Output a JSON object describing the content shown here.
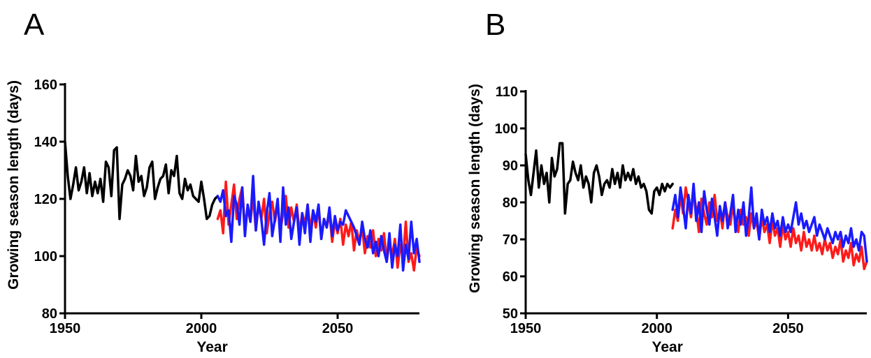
{
  "chart_data": [
    {
      "type": "line",
      "panel_label": "A",
      "xlabel": "Year",
      "ylabel": "Growing season length (days)",
      "xlim": [
        1950,
        2080
      ],
      "ylim": [
        80,
        160
      ],
      "xticks": [
        1950,
        2000,
        2050
      ],
      "yticks": [
        80,
        100,
        120,
        140,
        160
      ],
      "grid": false,
      "series": [
        {
          "color": "#000000",
          "x": [
            1950,
            1951,
            1952,
            1953,
            1954,
            1955,
            1956,
            1957,
            1958,
            1959,
            1960,
            1961,
            1962,
            1963,
            1964,
            1965,
            1966,
            1967,
            1968,
            1969,
            1970,
            1971,
            1972,
            1973,
            1974,
            1975,
            1976,
            1977,
            1978,
            1979,
            1980,
            1981,
            1982,
            1983,
            1984,
            1985,
            1986,
            1987,
            1988,
            1989,
            1990,
            1991,
            1992,
            1993,
            1994,
            1995,
            1996,
            1997,
            1998,
            1999,
            2000,
            2001,
            2002,
            2003,
            2004,
            2005,
            2006
          ],
          "y": [
            140,
            128,
            120,
            125,
            131,
            123,
            126,
            131,
            122,
            129,
            121,
            126,
            122,
            127,
            119,
            133,
            131,
            121,
            137,
            138,
            113,
            125,
            127,
            130,
            128,
            123,
            135,
            126,
            128,
            121,
            124,
            131,
            133,
            120,
            124,
            127,
            128,
            132,
            122,
            130,
            128,
            135,
            122,
            120,
            127,
            123,
            125,
            121,
            120,
            119,
            126,
            120,
            113,
            114,
            118,
            120,
            121
          ]
        },
        {
          "color": "#ff1a1a",
          "x": [
            2006,
            2007,
            2008,
            2009,
            2010,
            2011,
            2012,
            2013,
            2014,
            2015,
            2016,
            2017,
            2018,
            2019,
            2020,
            2021,
            2022,
            2023,
            2024,
            2025,
            2026,
            2027,
            2028,
            2029,
            2030,
            2031,
            2032,
            2033,
            2034,
            2035,
            2036,
            2037,
            2038,
            2039,
            2040,
            2041,
            2042,
            2043,
            2044,
            2045,
            2046,
            2047,
            2048,
            2049,
            2050,
            2051,
            2052,
            2053,
            2054,
            2055,
            2056,
            2057,
            2058,
            2059,
            2060,
            2061,
            2062,
            2063,
            2064,
            2065,
            2066,
            2067,
            2068,
            2069,
            2070,
            2071,
            2072,
            2073,
            2074,
            2075,
            2076,
            2077,
            2078,
            2079,
            2080
          ],
          "y": [
            113,
            116,
            108,
            126,
            111,
            118,
            125,
            113,
            120,
            124,
            110,
            117,
            112,
            121,
            109,
            118,
            113,
            120,
            108,
            115,
            119,
            112,
            118,
            109,
            115,
            121,
            110,
            117,
            112,
            118,
            108,
            115,
            111,
            118,
            109,
            116,
            110,
            117,
            106,
            113,
            110,
            115,
            105,
            112,
            108,
            113,
            104,
            111,
            107,
            112,
            102,
            109,
            105,
            110,
            101,
            107,
            103,
            109,
            100,
            106,
            102,
            108,
            98,
            105,
            100,
            106,
            96,
            104,
            99,
            112,
            98,
            101,
            95,
            103,
            100
          ]
        },
        {
          "color": "#1a1aff",
          "x": [
            2006,
            2007,
            2008,
            2009,
            2010,
            2011,
            2012,
            2013,
            2014,
            2015,
            2016,
            2017,
            2018,
            2019,
            2020,
            2021,
            2022,
            2023,
            2024,
            2025,
            2026,
            2027,
            2028,
            2029,
            2030,
            2031,
            2032,
            2033,
            2034,
            2035,
            2036,
            2037,
            2038,
            2039,
            2040,
            2041,
            2042,
            2043,
            2044,
            2045,
            2046,
            2047,
            2048,
            2049,
            2050,
            2051,
            2052,
            2053,
            2054,
            2055,
            2056,
            2057,
            2058,
            2059,
            2060,
            2061,
            2062,
            2063,
            2064,
            2065,
            2066,
            2067,
            2068,
            2069,
            2070,
            2071,
            2072,
            2073,
            2074,
            2075,
            2076,
            2077,
            2078,
            2079,
            2080
          ],
          "y": [
            121,
            119,
            123,
            114,
            116,
            105,
            121,
            118,
            111,
            124,
            107,
            118,
            112,
            128,
            109,
            119,
            113,
            104,
            115,
            122,
            107,
            113,
            120,
            105,
            124,
            111,
            117,
            106,
            112,
            117,
            104,
            115,
            108,
            118,
            105,
            116,
            112,
            118,
            106,
            113,
            110,
            117,
            107,
            114,
            109,
            112,
            111,
            116,
            114,
            112,
            110,
            107,
            104,
            112,
            106,
            103,
            109,
            101,
            105,
            100,
            107,
            102,
            98,
            108,
            96,
            104,
            100,
            111,
            95,
            104,
            99,
            112,
            101,
            106,
            98
          ]
        }
      ]
    },
    {
      "type": "line",
      "panel_label": "B",
      "xlabel": "Year",
      "ylabel": "Growing season length (days)",
      "xlim": [
        1950,
        2080
      ],
      "ylim": [
        50,
        110
      ],
      "xticks": [
        1950,
        2000,
        2050
      ],
      "yticks": [
        50,
        60,
        70,
        80,
        90,
        100,
        110
      ],
      "grid": false,
      "series": [
        {
          "color": "#000000",
          "x": [
            1950,
            1951,
            1952,
            1953,
            1954,
            1955,
            1956,
            1957,
            1958,
            1959,
            1960,
            1961,
            1962,
            1963,
            1964,
            1965,
            1966,
            1967,
            1968,
            1969,
            1970,
            1971,
            1972,
            1973,
            1974,
            1975,
            1976,
            1977,
            1978,
            1979,
            1980,
            1981,
            1982,
            1983,
            1984,
            1985,
            1986,
            1987,
            1988,
            1989,
            1990,
            1991,
            1992,
            1993,
            1994,
            1995,
            1996,
            1997,
            1998,
            1999,
            2000,
            2001,
            2002,
            2003,
            2004,
            2005,
            2006
          ],
          "y": [
            93,
            86,
            82,
            88,
            94,
            84,
            90,
            85,
            88,
            80,
            92,
            87,
            89,
            96,
            96,
            77,
            85,
            86,
            91,
            88,
            86,
            90,
            84,
            87,
            85,
            80,
            88,
            90,
            87,
            82,
            85,
            86,
            84,
            89,
            85,
            88,
            84,
            90,
            86,
            88,
            86,
            89,
            85,
            87,
            84,
            85,
            83,
            78,
            77,
            83,
            84,
            82,
            85,
            83,
            85,
            84,
            85
          ]
        },
        {
          "color": "#ff1a1a",
          "x": [
            2006,
            2007,
            2008,
            2009,
            2010,
            2011,
            2012,
            2013,
            2014,
            2015,
            2016,
            2017,
            2018,
            2019,
            2020,
            2021,
            2022,
            2023,
            2024,
            2025,
            2026,
            2027,
            2028,
            2029,
            2030,
            2031,
            2032,
            2033,
            2034,
            2035,
            2036,
            2037,
            2038,
            2039,
            2040,
            2041,
            2042,
            2043,
            2044,
            2045,
            2046,
            2047,
            2048,
            2049,
            2050,
            2051,
            2052,
            2053,
            2054,
            2055,
            2056,
            2057,
            2058,
            2059,
            2060,
            2061,
            2062,
            2063,
            2064,
            2065,
            2066,
            2067,
            2068,
            2069,
            2070,
            2071,
            2072,
            2073,
            2074,
            2075,
            2076,
            2077,
            2078,
            2079,
            2080
          ],
          "y": [
            73,
            78,
            75,
            82,
            77,
            84,
            80,
            76,
            83,
            78,
            72,
            81,
            77,
            74,
            80,
            76,
            82,
            75,
            78,
            73,
            80,
            76,
            74,
            79,
            75,
            72,
            78,
            74,
            76,
            71,
            77,
            73,
            75,
            70,
            76,
            72,
            74,
            69,
            75,
            71,
            73,
            68,
            74,
            70,
            72,
            68,
            73,
            69,
            71,
            67,
            72,
            68,
            70,
            67,
            71,
            67,
            69,
            66,
            70,
            67,
            69,
            65,
            68,
            66,
            70,
            64,
            67,
            65,
            69,
            63,
            66,
            64,
            68,
            62,
            64
          ]
        },
        {
          "color": "#1a1aff",
          "x": [
            2006,
            2007,
            2008,
            2009,
            2010,
            2011,
            2012,
            2013,
            2014,
            2015,
            2016,
            2017,
            2018,
            2019,
            2020,
            2021,
            2022,
            2023,
            2024,
            2025,
            2026,
            2027,
            2028,
            2029,
            2030,
            2031,
            2032,
            2033,
            2034,
            2035,
            2036,
            2037,
            2038,
            2039,
            2040,
            2041,
            2042,
            2043,
            2044,
            2045,
            2046,
            2047,
            2048,
            2049,
            2050,
            2051,
            2052,
            2053,
            2054,
            2055,
            2056,
            2057,
            2058,
            2059,
            2060,
            2061,
            2062,
            2063,
            2064,
            2065,
            2066,
            2067,
            2068,
            2069,
            2070,
            2071,
            2072,
            2073,
            2074,
            2075,
            2076,
            2077,
            2078,
            2079,
            2080
          ],
          "y": [
            78,
            82,
            76,
            84,
            79,
            73,
            82,
            77,
            85,
            75,
            80,
            72,
            83,
            78,
            74,
            81,
            76,
            71,
            79,
            75,
            80,
            73,
            77,
            82,
            72,
            78,
            74,
            80,
            71,
            76,
            84,
            73,
            77,
            70,
            78,
            74,
            76,
            72,
            77,
            73,
            75,
            71,
            76,
            72,
            74,
            72,
            76,
            80,
            74,
            77,
            73,
            75,
            72,
            74,
            76,
            71,
            74,
            72,
            70,
            73,
            71,
            69,
            72,
            70,
            72,
            68,
            71,
            69,
            73,
            68,
            70,
            67,
            72,
            71,
            64
          ]
        }
      ]
    }
  ]
}
